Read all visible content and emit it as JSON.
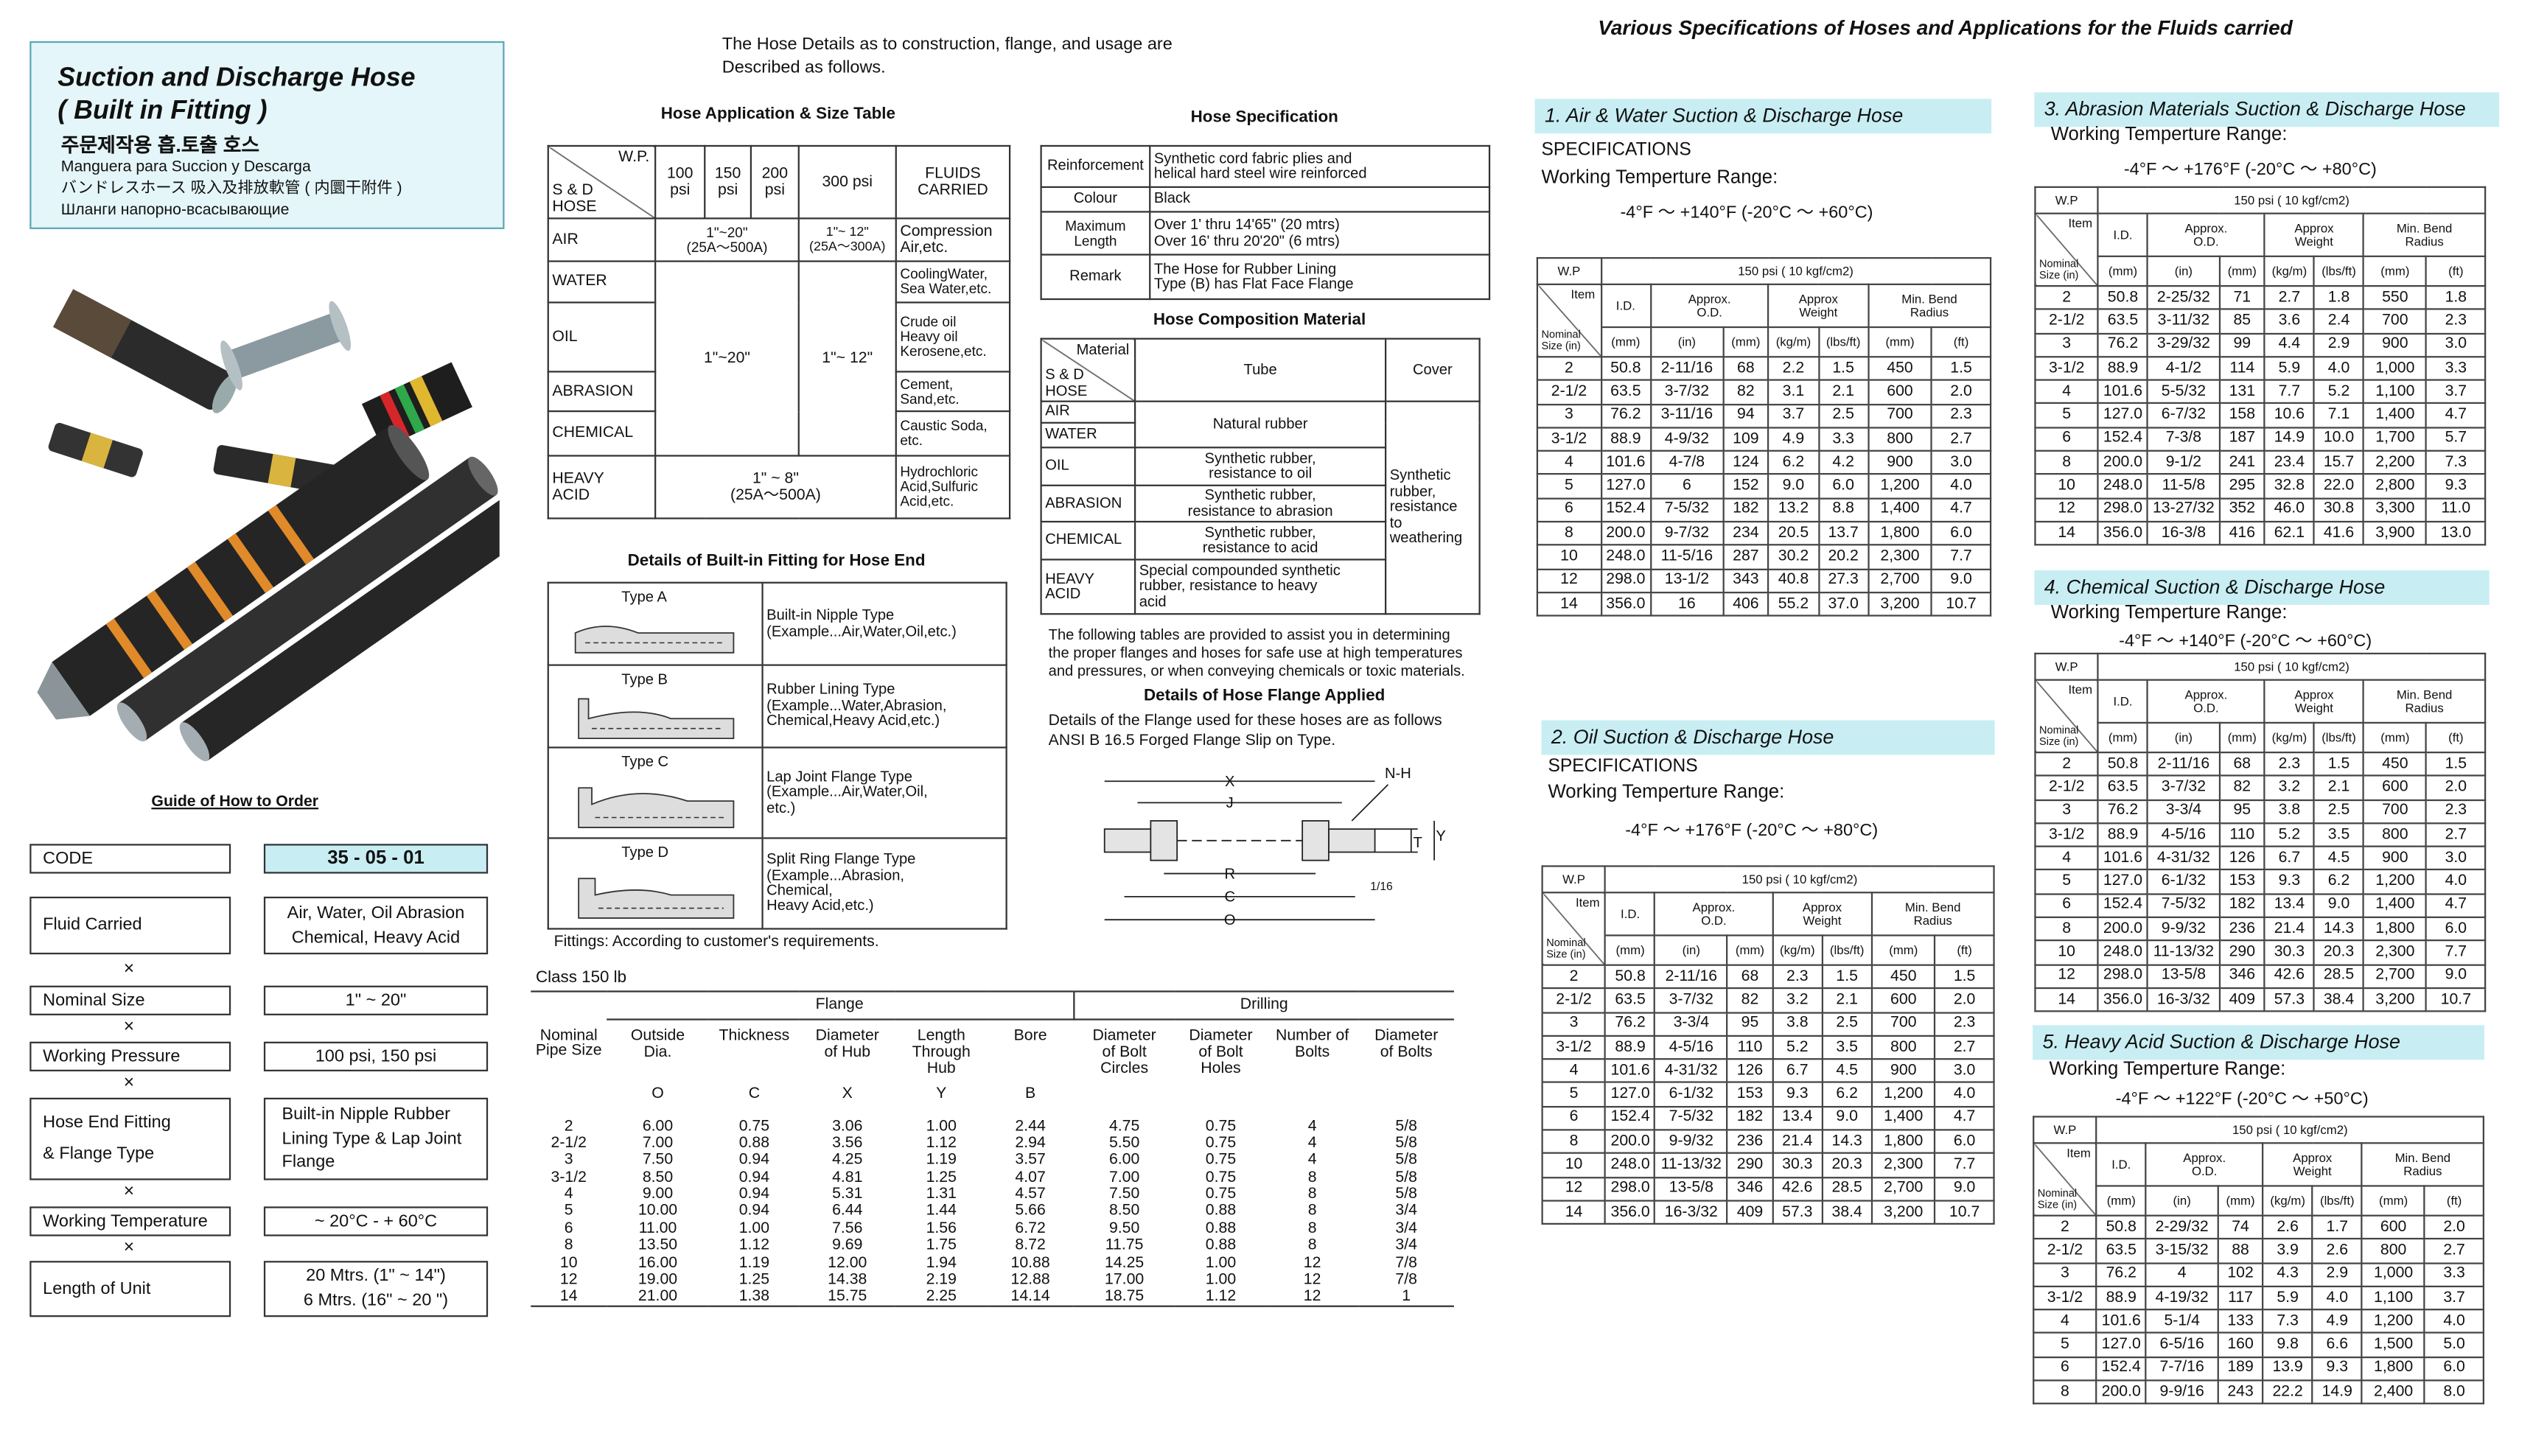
{
  "header": {
    "title_lines": [
      "Suction and Discharge Hose",
      "( Built in Fitting )"
    ],
    "subtitles": [
      "주문제작용 흡.토출 호스",
      "Manguera para Succion y Descarga",
      "バンドレスホース  吸入及排放軟管 ( 内圜干附件 )",
      "Шланги напорно-всасывающие"
    ]
  },
  "intro": "The Hose Details as to construction, flange, and usage are\nDescribed as follows.",
  "application": {
    "title": "Hose Application & Size Table",
    "header": [
      "W.P.",
      "S & D\nHOSE",
      "100\npsi",
      "150\npsi",
      "200\npsi",
      "300 psi",
      "FLUIDS\nCARRIED"
    ],
    "fluids": [
      "AIR",
      "WATER",
      "OIL",
      "ABRASION",
      "CHEMICAL",
      "HEAVY\nACID"
    ],
    "carried": [
      "Compression\nAir,etc.",
      "CoolingWater,\nSea Water,etc.",
      "Crude oil\nHeavy oil\nKerosene,etc.",
      "Cement,\nSand,etc.",
      "Caustic Soda,\netc.",
      "Hydrochloric\nAcid,Sulfuric\nAcid,etc."
    ],
    "sizes": [
      "1\"~20\"\n(25A～500A)",
      "1\"~ 12\"\n(25A～300A)",
      "1\"~20\"",
      "1\"~ 12\"",
      "1\" ~ 8\"\n(25A～500A)"
    ]
  },
  "specification": {
    "title": "Hose Specification",
    "rows": [
      [
        "Reinforcement",
        "Synthetic cord fabric plies and\nhelical hard steel wire reinforced"
      ],
      [
        "Colour",
        "Black"
      ],
      [
        "Maximum Length",
        "Over 1' thru 14'65\" (20 mtrs)\nOver 16' thru 20'20\" (6 mtrs)"
      ],
      [
        "Remark",
        "The Hose for Rubber Lining\nType (B) has Flat Face Flange"
      ]
    ]
  },
  "composition": {
    "title": "Hose Composition Material",
    "header": [
      "Material",
      "S & D\nHOSE",
      "Tube",
      "Cover"
    ],
    "materials": [
      "AIR",
      "WATER",
      "OIL",
      "ABRASION",
      "CHEMICAL",
      "HEAVY\nACID"
    ],
    "tubes": [
      "Natural rubber",
      "Synthetic rubber,\nresistance to oil",
      "Synthetic rubber,\nresistance to abrasion",
      "Synthetic rubber,\nresistance to acid",
      "Special compounded synthetic\nrubber, resistance to heavy\nacid"
    ],
    "cover": "Synthetic\nrubber,\nresistance\nto\nweathering"
  },
  "fittings": {
    "title": "Details of Built-in Fitting for Hose End",
    "types": [
      {
        "name": "Type A",
        "description": "Built-in Nipple Type\n (Example...Air,Water,Oil,etc.)"
      },
      {
        "name": "Type B",
        "description": "Rubber Lining Type\n(Example...Water,Abrasion,\nChemical,Heavy Acid,etc.)"
      },
      {
        "name": "Type C",
        "description": "Lap Joint Flange Type\n(Example...Air,Water,Oil,\netc.)"
      },
      {
        "name": "Type D",
        "description": "Split Ring Flange Type\n(Example...Abrasion,\nChemical,\nHeavy Acid,etc.)"
      }
    ],
    "note": "Fittings:  According to customer's requirements."
  },
  "order": {
    "title": "Guide of How to Order",
    "separator": "×",
    "rows": [
      {
        "label": "CODE",
        "value": "35 - 05 - 01"
      },
      {
        "label": "Fluid Carried",
        "value": "Air, Water, Oil Abrasion\nChemical, Heavy Acid"
      },
      {
        "label": "Nominal Size",
        "value": "1\" ~ 20\""
      },
      {
        "label": "Working Pressure",
        "value": "100 psi, 150 psi"
      },
      {
        "label": "Hose End Fitting\n& Flange Type",
        "value": "Built-in Nipple Rubber\nLining Type & Lap Joint\nFlange"
      },
      {
        "label": "Working Temperature",
        "value": "~ 20°C - + 60°C"
      },
      {
        "label": "Length of Unit",
        "value": "20 Mtrs. (1\" ~ 14\")\n6 Mtrs. (16\" ~ 20 \")"
      }
    ]
  },
  "flange": {
    "note": "The following tables are provided to assist you in determining\nthe proper flanges and hoses for safe use at high temperatures\nand pressures, or when conveying chemicals or toxic materials.",
    "title": "Details of Hose Flange Applied",
    "description": "Details of the Flange used for these hoses are as follows\nANSI B 16.5 Forged Flange Slip on Type.",
    "diagram_labels": {
      "x": "X",
      "j": "J",
      "nh": "N-H",
      "t": "T",
      "y": "Y",
      "r": "R",
      "c": "C",
      "o": "O",
      "gap": "1/16"
    },
    "table": {
      "caption": "Class 150 lb",
      "groups": [
        "Flange",
        "Drilling"
      ],
      "columns": [
        "Nominal\nPipe Size",
        "Outside\nDia.",
        "Thickness",
        "Diameter\nof Hub",
        "Length\nThrough\nHub",
        "Bore",
        "Diameter\nof Bolt\nCircles",
        "Diameter\nof Bolt\nHoles",
        "Number of\nBolts",
        "Diameter\nof Bolts"
      ],
      "symbols": [
        "O",
        "C",
        "X",
        "Y",
        "B"
      ],
      "rows": [
        [
          "2",
          "6.00",
          "0.75",
          "3.06",
          "1.00",
          "2.44",
          "4.75",
          "0.75",
          "4",
          "5/8"
        ],
        [
          "2-1/2",
          "7.00",
          "0.88",
          "3.56",
          "1.12",
          "2.94",
          "5.50",
          "0.75",
          "4",
          "5/8"
        ],
        [
          "3",
          "7.50",
          "0.94",
          "4.25",
          "1.19",
          "3.57",
          "6.00",
          "0.75",
          "4",
          "5/8"
        ],
        [
          "3-1/2",
          "8.50",
          "0.94",
          "4.81",
          "1.25",
          "4.07",
          "7.00",
          "0.75",
          "8",
          "5/8"
        ],
        [
          "4",
          "9.00",
          "0.94",
          "5.31",
          "1.31",
          "4.57",
          "7.50",
          "0.75",
          "8",
          "5/8"
        ],
        [
          "5",
          "10.00",
          "0.94",
          "6.44",
          "1.44",
          "5.66",
          "8.50",
          "0.88",
          "8",
          "3/4"
        ],
        [
          "6",
          "11.00",
          "1.00",
          "7.56",
          "1.56",
          "6.72",
          "9.50",
          "0.88",
          "8",
          "3/4"
        ],
        [
          "8",
          "13.50",
          "1.12",
          "9.69",
          "1.75",
          "8.72",
          "11.75",
          "0.88",
          "8",
          "3/4"
        ],
        [
          "10",
          "16.00",
          "1.19",
          "12.00",
          "1.94",
          "10.88",
          "14.25",
          "1.00",
          "12",
          "7/8"
        ],
        [
          "12",
          "19.00",
          "1.25",
          "14.38",
          "2.19",
          "12.88",
          "17.00",
          "1.00",
          "12",
          "7/8"
        ],
        [
          "14",
          "21.00",
          "1.38",
          "15.75",
          "2.25",
          "14.14",
          "18.75",
          "1.12",
          "12",
          "1"
        ]
      ]
    }
  },
  "specs": {
    "title": "Various Specifications of Hoses and Applications for the Fluids carried",
    "header": {
      "wp": "W.P",
      "pressure": "150 psi ( 10 kgf/cm2)",
      "item": "Item",
      "nominal": "Nominal\nSize (in)",
      "columns": [
        "I.D.",
        "Approx.\nO.D.",
        "Approx\nWeight",
        "Min. Bend\nRadius"
      ],
      "units": [
        "(mm)",
        "(in)",
        "(mm)",
        "(kg/m)",
        "(lbs/ft)",
        "(mm)",
        "(ft)"
      ]
    },
    "sections": [
      {
        "title": "1.  Air & Water Suction & Discharge Hose",
        "specifications": "SPECIFICATIONS",
        "range_label": "Working Temperture Range:",
        "range": "-4°F ～ +140°F (-20°C ～ +60°C)",
        "rows": [
          [
            "2",
            "50.8",
            "2-11/16",
            "68",
            "2.2",
            "1.5",
            "450",
            "1.5"
          ],
          [
            "2-1/2",
            "63.5",
            "3-7/32",
            "82",
            "3.1",
            "2.1",
            "600",
            "2.0"
          ],
          [
            "3",
            "76.2",
            "3-11/16",
            "94",
            "3.7",
            "2.5",
            "700",
            "2.3"
          ],
          [
            "3-1/2",
            "88.9",
            "4-9/32",
            "109",
            "4.9",
            "3.3",
            "800",
            "2.7"
          ],
          [
            "4",
            "101.6",
            "4-7/8",
            "124",
            "6.2",
            "4.2",
            "900",
            "3.0"
          ],
          [
            "5",
            "127.0",
            "6",
            "152",
            "9.0",
            "6.0",
            "1,200",
            "4.0"
          ],
          [
            "6",
            "152.4",
            "7-5/32",
            "182",
            "13.2",
            "8.8",
            "1,400",
            "4.7"
          ],
          [
            "8",
            "200.0",
            "9-7/32",
            "234",
            "20.5",
            "13.7",
            "1,800",
            "6.0"
          ],
          [
            "10",
            "248.0",
            "11-5/16",
            "287",
            "30.2",
            "20.2",
            "2,300",
            "7.7"
          ],
          [
            "12",
            "298.0",
            "13-1/2",
            "343",
            "40.8",
            "27.3",
            "2,700",
            "9.0"
          ],
          [
            "14",
            "356.0",
            "16",
            "406",
            "55.2",
            "37.0",
            "3,200",
            "10.7"
          ]
        ]
      },
      {
        "title": "2.  Oil Suction & Discharge Hose",
        "specifications": "SPECIFICATIONS",
        "range_label": "Working Temperture Range:",
        "range": "-4°F ～ +176°F (-20°C ～ +80°C)",
        "rows": [
          [
            "2",
            "50.8",
            "2-11/16",
            "68",
            "2.3",
            "1.5",
            "450",
            "1.5"
          ],
          [
            "2-1/2",
            "63.5",
            "3-7/32",
            "82",
            "3.2",
            "2.1",
            "600",
            "2.0"
          ],
          [
            "3",
            "76.2",
            "3-3/4",
            "95",
            "3.8",
            "2.5",
            "700",
            "2.3"
          ],
          [
            "3-1/2",
            "88.9",
            "4-5/16",
            "110",
            "5.2",
            "3.5",
            "800",
            "2.7"
          ],
          [
            "4",
            "101.6",
            "4-31/32",
            "126",
            "6.7",
            "4.5",
            "900",
            "3.0"
          ],
          [
            "5",
            "127.0",
            "6-1/32",
            "153",
            "9.3",
            "6.2",
            "1,200",
            "4.0"
          ],
          [
            "6",
            "152.4",
            "7-5/32",
            "182",
            "13.4",
            "9.0",
            "1,400",
            "4.7"
          ],
          [
            "8",
            "200.0",
            "9-9/32",
            "236",
            "21.4",
            "14.3",
            "1,800",
            "6.0"
          ],
          [
            "10",
            "248.0",
            "11-13/32",
            "290",
            "30.3",
            "20.3",
            "2,300",
            "7.7"
          ],
          [
            "12",
            "298.0",
            "13-5/8",
            "346",
            "42.6",
            "28.5",
            "2,700",
            "9.0"
          ],
          [
            "14",
            "356.0",
            "16-3/32",
            "409",
            "57.3",
            "38.4",
            "3,200",
            "10.7"
          ]
        ]
      },
      {
        "title": "3.  Abrasion Materials Suction & Discharge Hose",
        "range_label": "Working Temperture Range:",
        "range": "-4°F ～ +176°F (-20°C ～ +80°C)",
        "rows": [
          [
            "2",
            "50.8",
            "2-25/32",
            "71",
            "2.7",
            "1.8",
            "550",
            "1.8"
          ],
          [
            "2-1/2",
            "63.5",
            "3-11/32",
            "85",
            "3.6",
            "2.4",
            "700",
            "2.3"
          ],
          [
            "3",
            "76.2",
            "3-29/32",
            "99",
            "4.4",
            "2.9",
            "900",
            "3.0"
          ],
          [
            "3-1/2",
            "88.9",
            "4-1/2",
            "114",
            "5.9",
            "4.0",
            "1,000",
            "3.3"
          ],
          [
            "4",
            "101.6",
            "5-5/32",
            "131",
            "7.7",
            "5.2",
            "1,100",
            "3.7"
          ],
          [
            "5",
            "127.0",
            "6-7/32",
            "158",
            "10.6",
            "7.1",
            "1,400",
            "4.7"
          ],
          [
            "6",
            "152.4",
            "7-3/8",
            "187",
            "14.9",
            "10.0",
            "1,700",
            "5.7"
          ],
          [
            "8",
            "200.0",
            "9-1/2",
            "241",
            "23.4",
            "15.7",
            "2,200",
            "7.3"
          ],
          [
            "10",
            "248.0",
            "11-5/8",
            "295",
            "32.8",
            "22.0",
            "2,800",
            "9.3"
          ],
          [
            "12",
            "298.0",
            "13-27/32",
            "352",
            "46.0",
            "30.8",
            "3,300",
            "11.0"
          ],
          [
            "14",
            "356.0",
            "16-3/8",
            "416",
            "62.1",
            "41.6",
            "3,900",
            "13.0"
          ]
        ]
      },
      {
        "title": "4.  Chemical Suction & Discharge Hose",
        "range_label": "Working Temperture Range:",
        "range": "-4°F ～ +140°F (-20°C ～ +60°C)",
        "rows": [
          [
            "2",
            "50.8",
            "2-11/16",
            "68",
            "2.3",
            "1.5",
            "450",
            "1.5"
          ],
          [
            "2-1/2",
            "63.5",
            "3-7/32",
            "82",
            "3.2",
            "2.1",
            "600",
            "2.0"
          ],
          [
            "3",
            "76.2",
            "3-3/4",
            "95",
            "3.8",
            "2.5",
            "700",
            "2.3"
          ],
          [
            "3-1/2",
            "88.9",
            "4-5/16",
            "110",
            "5.2",
            "3.5",
            "800",
            "2.7"
          ],
          [
            "4",
            "101.6",
            "4-31/32",
            "126",
            "6.7",
            "4.5",
            "900",
            "3.0"
          ],
          [
            "5",
            "127.0",
            "6-1/32",
            "153",
            "9.3",
            "6.2",
            "1,200",
            "4.0"
          ],
          [
            "6",
            "152.4",
            "7-5/32",
            "182",
            "13.4",
            "9.0",
            "1,400",
            "4.7"
          ],
          [
            "8",
            "200.0",
            "9-9/32",
            "236",
            "21.4",
            "14.3",
            "1,800",
            "6.0"
          ],
          [
            "10",
            "248.0",
            "11-13/32",
            "290",
            "30.3",
            "20.3",
            "2,300",
            "7.7"
          ],
          [
            "12",
            "298.0",
            "13-5/8",
            "346",
            "42.6",
            "28.5",
            "2,700",
            "9.0"
          ],
          [
            "14",
            "356.0",
            "16-3/32",
            "409",
            "57.3",
            "38.4",
            "3,200",
            "10.7"
          ]
        ]
      },
      {
        "title": "5.  Heavy Acid Suction & Discharge Hose",
        "range_label": "Working Temperture Range:",
        "range": "-4°F ～ +122°F (-20°C ～ +50°C)",
        "rows": [
          [
            "2",
            "50.8",
            "2-29/32",
            "74",
            "2.6",
            "1.7",
            "600",
            "2.0"
          ],
          [
            "2-1/2",
            "63.5",
            "3-15/32",
            "88",
            "3.9",
            "2.6",
            "800",
            "2.7"
          ],
          [
            "3",
            "76.2",
            "4",
            "102",
            "4.3",
            "2.9",
            "1,000",
            "3.3"
          ],
          [
            "3-1/2",
            "88.9",
            "4-19/32",
            "117",
            "5.9",
            "4.0",
            "1,100",
            "3.7"
          ],
          [
            "4",
            "101.6",
            "5-1/4",
            "133",
            "7.3",
            "4.9",
            "1,200",
            "4.0"
          ],
          [
            "5",
            "127.0",
            "6-5/16",
            "160",
            "9.8",
            "6.6",
            "1,500",
            "5.0"
          ],
          [
            "6",
            "152.4",
            "7-7/16",
            "189",
            "13.9",
            "9.3",
            "1,800",
            "6.0"
          ],
          [
            "8",
            "200.0",
            "9-9/16",
            "243",
            "22.2",
            "14.9",
            "2,400",
            "8.0"
          ]
        ]
      }
    ]
  }
}
